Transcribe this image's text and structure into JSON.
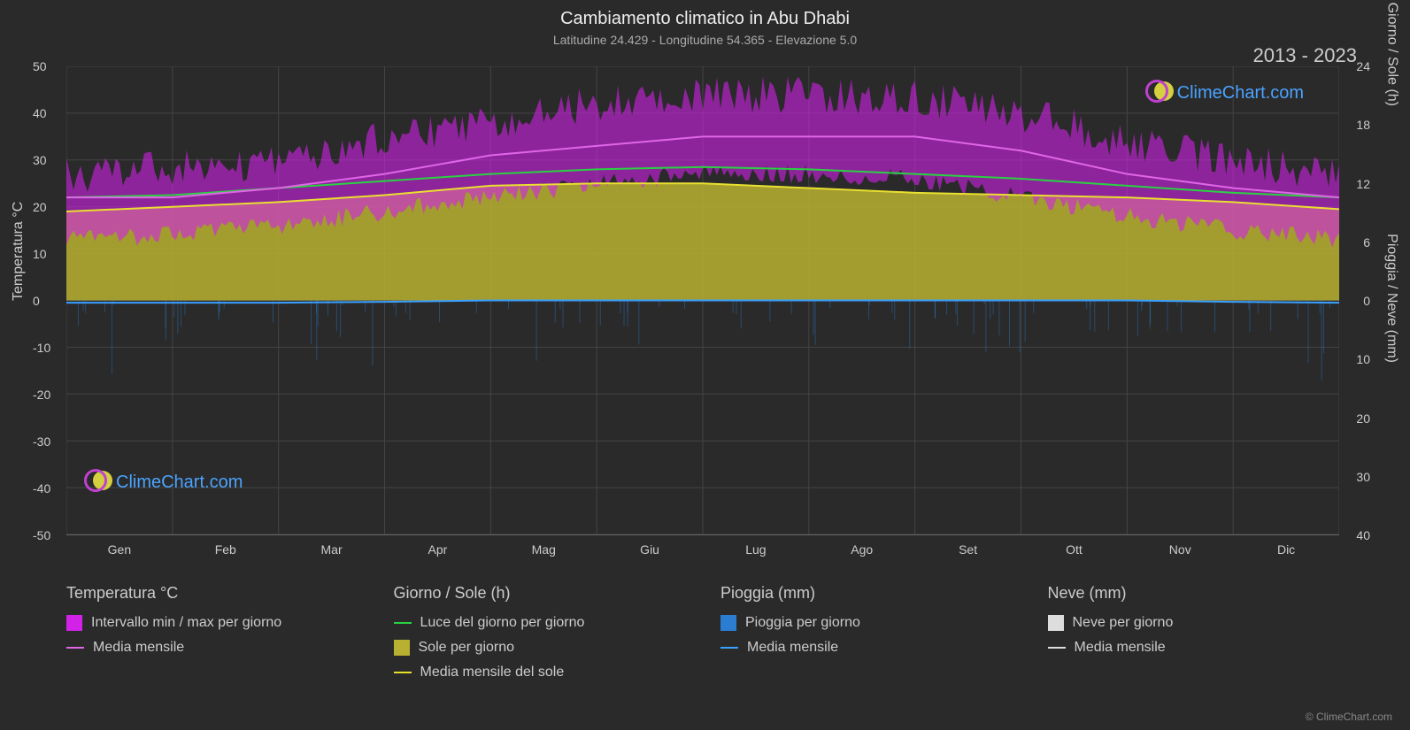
{
  "title": "Cambiamento climatico in Abu Dhabi",
  "subtitle": "Latitudine 24.429 - Longitudine 54.365 - Elevazione 5.0",
  "year_range": "2013 - 2023",
  "copyright": "© ClimeChart.com",
  "logo_text": "ClimeChart.com",
  "y_axis_left": {
    "label": "Temperatura °C",
    "min": -50,
    "max": 50,
    "step": 10,
    "ticks": [
      50,
      40,
      30,
      20,
      10,
      0,
      -10,
      -20,
      -30,
      -40,
      -50
    ]
  },
  "y_axis_right_top": {
    "label": "Giorno / Sole (h)",
    "min": 0,
    "max": 24,
    "ticks": [
      24,
      18,
      12,
      6,
      0
    ]
  },
  "y_axis_right_bottom": {
    "label": "Pioggia / Neve (mm)",
    "min": 0,
    "max": 40,
    "ticks": [
      0,
      10,
      20,
      30,
      40
    ]
  },
  "x_axis": {
    "labels": [
      "Gen",
      "Feb",
      "Mar",
      "Apr",
      "Mag",
      "Giu",
      "Lug",
      "Ago",
      "Set",
      "Ott",
      "Nov",
      "Dic"
    ]
  },
  "series": {
    "temp_monthly_avg": {
      "type": "line",
      "color": "#e066e8",
      "width": 2,
      "values": [
        22,
        22,
        24,
        27,
        31,
        33,
        35,
        35,
        35,
        32,
        27,
        24,
        22
      ]
    },
    "temp_minmax_band": {
      "type": "band",
      "color": "#d222e8",
      "opacity": 0.6,
      "upper": [
        27,
        28,
        30,
        35,
        38,
        42,
        44,
        44,
        43,
        40,
        34,
        30,
        27
      ],
      "lower": [
        13,
        14,
        16,
        19,
        22,
        25,
        27,
        27,
        26,
        22,
        18,
        15,
        13
      ]
    },
    "daylight": {
      "type": "line",
      "color": "#2ad242",
      "width": 2,
      "values": [
        22,
        22.5,
        24,
        25.5,
        27,
        28,
        28.5,
        28,
        27,
        26,
        24.5,
        23,
        22
      ]
    },
    "sun_monthly_avg": {
      "type": "line",
      "color": "#e8e030",
      "width": 2,
      "values": [
        19,
        20,
        21,
        22.5,
        24.5,
        25,
        25,
        24,
        23,
        22.5,
        22,
        21,
        19.5
      ]
    },
    "sun_area": {
      "type": "area",
      "color": "#b8b030",
      "opacity": 0.85,
      "upper": [
        19,
        20,
        21,
        22.5,
        24.5,
        25,
        25,
        24,
        23,
        22.5,
        22,
        21,
        19.5
      ],
      "baseline": 0
    },
    "rain_monthly_avg": {
      "type": "line",
      "color": "#3aa0ff",
      "width": 2,
      "values": [
        -0.5,
        -0.5,
        -0.5,
        -0.3,
        0,
        0,
        0,
        0,
        0,
        0,
        0,
        -0.3,
        -0.5
      ]
    },
    "rain_daily_bars": {
      "type": "bars",
      "color": "#2a7dd0",
      "opacity": 0.4,
      "sample_values": [
        -8,
        -12,
        -5,
        -3,
        0,
        0,
        0,
        0,
        0,
        0,
        -2,
        -6
      ]
    }
  },
  "legend": {
    "groups": [
      {
        "title": "Temperatura °C",
        "items": [
          {
            "type": "swatch",
            "color": "#d222e8",
            "label": "Intervallo min / max per giorno"
          },
          {
            "type": "line",
            "color": "#e066e8",
            "label": "Media mensile"
          }
        ]
      },
      {
        "title": "Giorno / Sole (h)",
        "items": [
          {
            "type": "line",
            "color": "#2ad242",
            "label": "Luce del giorno per giorno"
          },
          {
            "type": "swatch",
            "color": "#b8b030",
            "label": "Sole per giorno"
          },
          {
            "type": "line",
            "color": "#e8e030",
            "label": "Media mensile del sole"
          }
        ]
      },
      {
        "title": "Pioggia (mm)",
        "items": [
          {
            "type": "swatch",
            "color": "#2a7dd0",
            "label": "Pioggia per giorno"
          },
          {
            "type": "line",
            "color": "#3aa0ff",
            "label": "Media mensile"
          }
        ]
      },
      {
        "title": "Neve (mm)",
        "items": [
          {
            "type": "swatch",
            "color": "#dddddd",
            "label": "Neve per giorno"
          },
          {
            "type": "line",
            "color": "#dddddd",
            "label": "Media mensile"
          }
        ]
      }
    ]
  },
  "colors": {
    "background": "#2a2a2a",
    "grid": "#444444",
    "text": "#cccccc",
    "logo_accent": "#4aa3ff"
  }
}
